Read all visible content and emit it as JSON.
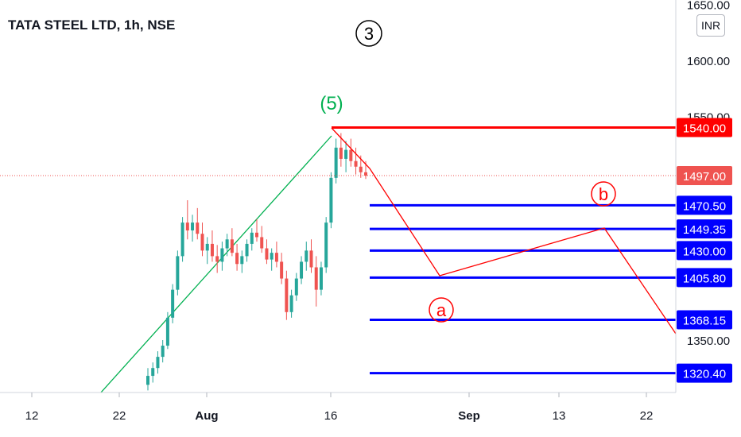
{
  "header": {
    "title": "TATA STEEL LTD, 1h, NSE",
    "currency_badge": "INR"
  },
  "chart_data": {
    "type": "candlestick",
    "ylim": [
      1300,
      1660
    ],
    "y_ticks": [
      {
        "value": 1650,
        "label": "1650.00"
      },
      {
        "value": 1600,
        "label": "1600.00"
      },
      {
        "value": 1550,
        "label": "1550.00"
      },
      {
        "value": 1350,
        "label": "1350.00"
      }
    ],
    "x_ticks": [
      "12",
      "22",
      "Aug",
      "16",
      "Sep",
      "13",
      "22"
    ],
    "current_price": {
      "value": 1497.0,
      "label": "1497.00",
      "color": "#ef5350"
    },
    "horizontal_levels": [
      {
        "value": 1540.0,
        "label": "1540.00",
        "color": "#ff0000"
      },
      {
        "value": 1470.5,
        "label": "1470.50",
        "color": "#0000ff"
      },
      {
        "value": 1449.35,
        "label": "1449.35",
        "color": "#0000ff"
      },
      {
        "value": 1430.0,
        "label": "1430.00",
        "color": "#0000ff"
      },
      {
        "value": 1405.8,
        "label": "1405.80",
        "color": "#0000ff"
      },
      {
        "value": 1368.15,
        "label": "1368.15",
        "color": "#0000ff"
      },
      {
        "value": 1320.4,
        "label": "1320.40",
        "color": "#0000ff"
      }
    ],
    "wave_annotations": [
      {
        "label": "3",
        "style": "circled",
        "color": "#000000"
      },
      {
        "label": "(5)",
        "style": "plain",
        "color": "#00b050"
      },
      {
        "label": "a",
        "style": "circled",
        "color": "#ff0000"
      },
      {
        "label": "b",
        "style": "circled",
        "color": "#ff0000"
      }
    ],
    "trendline_color": "#00b050",
    "projection_color": "#ff0000",
    "candles": [
      [
        1310,
        1325,
        1305,
        1318
      ],
      [
        1318,
        1330,
        1312,
        1325
      ],
      [
        1325,
        1340,
        1320,
        1335
      ],
      [
        1335,
        1350,
        1330,
        1345
      ],
      [
        1345,
        1375,
        1342,
        1370
      ],
      [
        1370,
        1400,
        1365,
        1395
      ],
      [
        1395,
        1430,
        1390,
        1425
      ],
      [
        1425,
        1460,
        1420,
        1455
      ],
      [
        1455,
        1475,
        1440,
        1448
      ],
      [
        1448,
        1462,
        1438,
        1455
      ],
      [
        1455,
        1468,
        1440,
        1445
      ],
      [
        1445,
        1455,
        1425,
        1430
      ],
      [
        1430,
        1442,
        1418,
        1436
      ],
      [
        1436,
        1448,
        1420,
        1425
      ],
      [
        1425,
        1435,
        1410,
        1420
      ],
      [
        1420,
        1438,
        1412,
        1432
      ],
      [
        1432,
        1445,
        1425,
        1440
      ],
      [
        1440,
        1450,
        1425,
        1428
      ],
      [
        1428,
        1436,
        1412,
        1418
      ],
      [
        1418,
        1430,
        1410,
        1425
      ],
      [
        1425,
        1440,
        1420,
        1436
      ],
      [
        1436,
        1450,
        1430,
        1446
      ],
      [
        1446,
        1458,
        1438,
        1442
      ],
      [
        1442,
        1452,
        1428,
        1432
      ],
      [
        1432,
        1440,
        1418,
        1422
      ],
      [
        1422,
        1432,
        1412,
        1428
      ],
      [
        1428,
        1438,
        1415,
        1420
      ],
      [
        1420,
        1428,
        1400,
        1405
      ],
      [
        1405,
        1412,
        1368,
        1375
      ],
      [
        1375,
        1395,
        1370,
        1390
      ],
      [
        1390,
        1410,
        1385,
        1405
      ],
      [
        1405,
        1425,
        1400,
        1420
      ],
      [
        1420,
        1438,
        1412,
        1430
      ],
      [
        1430,
        1440,
        1410,
        1415
      ],
      [
        1415,
        1425,
        1380,
        1395
      ],
      [
        1395,
        1420,
        1390,
        1415
      ],
      [
        1415,
        1460,
        1410,
        1455
      ],
      [
        1455,
        1500,
        1450,
        1495
      ],
      [
        1495,
        1530,
        1490,
        1522
      ],
      [
        1522,
        1535,
        1505,
        1512
      ],
      [
        1512,
        1528,
        1500,
        1520
      ],
      [
        1520,
        1530,
        1505,
        1510
      ],
      [
        1510,
        1522,
        1498,
        1505
      ],
      [
        1505,
        1515,
        1495,
        1500
      ],
      [
        1500,
        1510,
        1494,
        1497
      ]
    ]
  }
}
